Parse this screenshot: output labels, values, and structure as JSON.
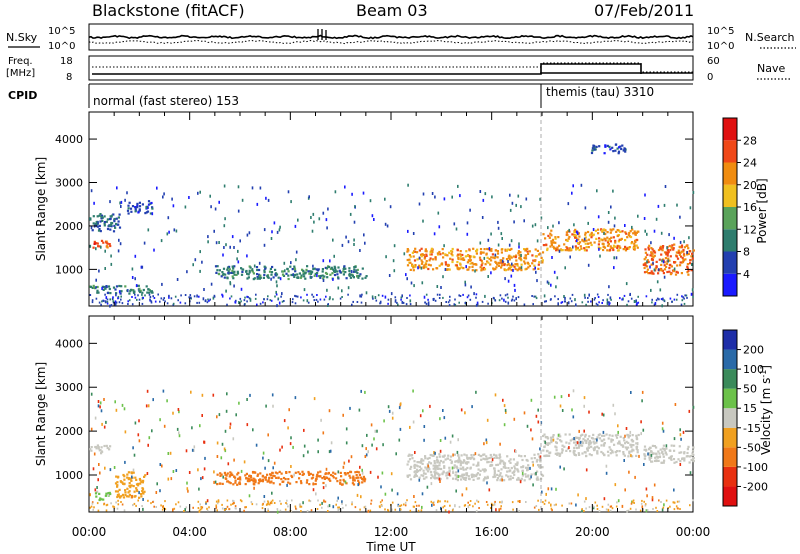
{
  "header": {
    "station": "Blackstone (fitACF)",
    "beam": "Beam 03",
    "date": "07/Feb/2011"
  },
  "strip_panel": {
    "left_label": "N.Sky",
    "right_label": "N.Search",
    "left_ticks": [
      "10^5",
      "10^0"
    ],
    "right_ticks": [
      "10^5",
      "10^0"
    ]
  },
  "freq_panel": {
    "left_label_line1": "Freq.",
    "left_label_line2": "[MHz]",
    "right_label": "Nave",
    "left_ticks": [
      "18",
      "8"
    ],
    "right_ticks": [
      "60",
      "0"
    ]
  },
  "cpid": {
    "label": "CPID",
    "modes": [
      {
        "name": "normal (fast stereo) 153",
        "start_hour": 0,
        "end_hour": 18
      },
      {
        "name": "themis (tau) 3310",
        "start_hour": 18,
        "end_hour": 24
      }
    ]
  },
  "time_axis": {
    "label": "Time UT",
    "tick_labels": [
      "00:00",
      "04:00",
      "08:00",
      "12:00",
      "16:00",
      "20:00",
      "00:00"
    ]
  },
  "range_axis": {
    "label": "Slant Range [km]",
    "tick_labels": [
      "1000",
      "2000",
      "3000",
      "4000"
    ]
  },
  "power_colorbar": {
    "label": "Power [dB]",
    "tick_labels": [
      "4",
      "8",
      "12",
      "16",
      "20",
      "24",
      "28"
    ],
    "colors": [
      "#1a1aff",
      "#2340b0",
      "#2e7d6e",
      "#5aa35a",
      "#f0c020",
      "#f08c10",
      "#f04818",
      "#e01010"
    ]
  },
  "velocity_colorbar": {
    "label_main": "Velocity [m s",
    "label_exp": "-1",
    "label_end": "]",
    "tick_labels": [
      "200",
      "100",
      "50",
      "15",
      "-15",
      "-50",
      "-100",
      "-200"
    ],
    "colors": [
      "#1e2ea8",
      "#2a6aa8",
      "#3a8a5a",
      "#6cc24a",
      "#c8c8c0",
      "#f0a020",
      "#f07818",
      "#e83010",
      "#e01010"
    ]
  },
  "chart_data": [
    {
      "type": "heatmap",
      "title": "Power",
      "x_unit": "hours UT",
      "y_unit": "km",
      "xlim": [
        0,
        24
      ],
      "ylim": [
        180,
        4600
      ],
      "y_ticks": [
        1000,
        2000,
        3000,
        4000
      ],
      "features": [
        {
          "x": [
            0.0,
            0.8
          ],
          "y": [
            1500,
            1700
          ],
          "level_db": 26
        },
        {
          "x": [
            0.0,
            1.2
          ],
          "y": [
            1900,
            2300
          ],
          "level_db": 8
        },
        {
          "x": [
            0.0,
            2.5
          ],
          "y": [
            450,
            650
          ],
          "level_db": 10
        },
        {
          "x": [
            1.5,
            2.5
          ],
          "y": [
            2300,
            2600
          ],
          "level_db": 6
        },
        {
          "x": [
            5.0,
            11.0
          ],
          "y": [
            800,
            1100
          ],
          "level_db": 10
        },
        {
          "x": [
            12.6,
            18.0
          ],
          "y": [
            1000,
            1500
          ],
          "level_db": 22
        },
        {
          "x": [
            18.0,
            21.8
          ],
          "y": [
            1450,
            1950
          ],
          "level_db": 22
        },
        {
          "x": [
            22.0,
            24.0
          ],
          "y": [
            900,
            1600
          ],
          "level_db": 24
        },
        {
          "x": [
            19.8,
            21.3
          ],
          "y": [
            3700,
            3900
          ],
          "level_db": 6
        }
      ]
    },
    {
      "type": "heatmap",
      "title": "Velocity",
      "x_unit": "hours UT",
      "y_unit": "km",
      "xlim": [
        0,
        24
      ],
      "ylim": [
        180,
        4600
      ],
      "y_ticks": [
        1000,
        2000,
        3000,
        4000
      ],
      "features": [
        {
          "x": [
            0.0,
            0.8
          ],
          "y": [
            1500,
            1700
          ],
          "velocity": 0
        },
        {
          "x": [
            1.0,
            2.2
          ],
          "y": [
            500,
            1100
          ],
          "velocity": -40
        },
        {
          "x": [
            5.0,
            11.0
          ],
          "y": [
            800,
            1100
          ],
          "velocity": -60
        },
        {
          "x": [
            12.6,
            18.0
          ],
          "y": [
            900,
            1500
          ],
          "velocity": 0
        },
        {
          "x": [
            18.0,
            21.8
          ],
          "y": [
            1450,
            1950
          ],
          "velocity": 0
        },
        {
          "x": [
            22.0,
            24.0
          ],
          "y": [
            1300,
            1700
          ],
          "velocity": 0
        },
        {
          "x": [
            0.2,
            0.8
          ],
          "y": [
            450,
            650
          ],
          "velocity": 20
        }
      ]
    }
  ]
}
